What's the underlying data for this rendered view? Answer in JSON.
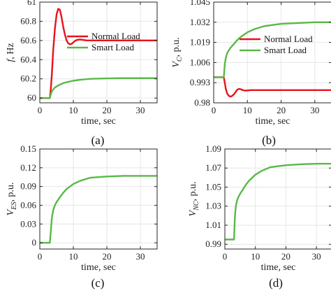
{
  "colors": {
    "normal": "#e8121b",
    "smart": "#58b947",
    "axis": "#262626",
    "grid": "#e6e6e6"
  },
  "chart_data": [
    {
      "id": "a",
      "type": "line",
      "subcaption": "(a)",
      "xlabel": "time, sec",
      "ylabel_main": "f",
      "ylabel_unit": ", Hz",
      "xlim": [
        0,
        35
      ],
      "ylim": [
        59.95,
        61
      ],
      "xticks": [
        0,
        10,
        20,
        30
      ],
      "yticks": [
        60,
        60.2,
        60.4,
        60.6,
        60.8,
        61
      ],
      "ytick_labels": [
        "60",
        "60.2",
        "60.4",
        "60.6",
        "60.8",
        "61"
      ],
      "legend": "right-middle",
      "grid": true,
      "series": [
        {
          "name": "Normal Load",
          "color_key": "normal",
          "x": [
            0,
            3,
            3.3,
            3.6,
            4,
            4.5,
            5,
            5.5,
            6,
            6.5,
            7,
            7.5,
            8,
            8.5,
            9,
            9.5,
            10,
            10.5,
            11,
            12,
            13,
            14,
            15,
            17,
            20,
            25,
            30,
            35
          ],
          "y": [
            60,
            60,
            60.1,
            60.25,
            60.5,
            60.72,
            60.87,
            60.93,
            60.92,
            60.84,
            60.74,
            60.66,
            60.6,
            60.57,
            60.56,
            60.565,
            60.58,
            60.595,
            60.605,
            60.61,
            60.605,
            60.6,
            60.6,
            60.6,
            60.6,
            60.6,
            60.6,
            60.6
          ]
        },
        {
          "name": "Smart Load",
          "color_key": "smart",
          "x": [
            0,
            3,
            3.3,
            3.6,
            4,
            4.5,
            5,
            6,
            7,
            8,
            10,
            12,
            15,
            20,
            25,
            30,
            35
          ],
          "y": [
            60,
            60,
            60.04,
            60.07,
            60.09,
            60.11,
            60.12,
            60.14,
            60.155,
            60.165,
            60.18,
            60.19,
            60.2,
            60.205,
            60.207,
            60.207,
            60.207
          ]
        }
      ]
    },
    {
      "id": "b",
      "type": "line",
      "subcaption": "(b)",
      "xlabel": "time, sec",
      "ylabel_main": "V",
      "ylabel_sub": "C",
      "ylabel_unit": ", p.u.",
      "xlim": [
        0,
        35
      ],
      "ylim": [
        0.98,
        1.045
      ],
      "xticks": [
        0,
        10,
        20,
        30
      ],
      "yticks": [
        0.98,
        0.993,
        1.006,
        1.019,
        1.032,
        1.045
      ],
      "ytick_labels": [
        "0.98",
        "0.993",
        "1.006",
        "1.019",
        "1.032",
        "1.045"
      ],
      "legend": "right-middle",
      "grid": true,
      "series": [
        {
          "name": "Normal Load",
          "color_key": "normal",
          "x": [
            0,
            3,
            3.3,
            3.6,
            4,
            4.5,
            5,
            5.5,
            6,
            6.5,
            7,
            7.5,
            8,
            8.5,
            9,
            9.5,
            10,
            11,
            12,
            13,
            15,
            20,
            25,
            30,
            35
          ],
          "y": [
            0.9965,
            0.9965,
            0.993,
            0.989,
            0.986,
            0.9845,
            0.984,
            0.9845,
            0.9855,
            0.987,
            0.9885,
            0.989,
            0.9888,
            0.9883,
            0.988,
            0.9879,
            0.988,
            0.9882,
            0.9882,
            0.9882,
            0.9882,
            0.9882,
            0.9882,
            0.9882,
            0.9882
          ]
        },
        {
          "name": "Smart Load",
          "color_key": "smart",
          "x": [
            0,
            3,
            3.3,
            3.6,
            4,
            4.5,
            5,
            6,
            7,
            8,
            10,
            12,
            15,
            20,
            25,
            30,
            35
          ],
          "y": [
            0.9965,
            0.9965,
            1.005,
            1.009,
            1.012,
            1.014,
            1.0155,
            1.018,
            1.0205,
            1.0225,
            1.0255,
            1.0275,
            1.0295,
            1.031,
            1.0315,
            1.032,
            1.032
          ]
        }
      ]
    },
    {
      "id": "c",
      "type": "line",
      "subcaption": "(c)",
      "xlabel": "time, sec",
      "ylabel_main": "V",
      "ylabel_sub": "ES",
      "ylabel_unit": ", p.u.",
      "xlim": [
        0,
        35
      ],
      "ylim": [
        -0.01,
        0.15
      ],
      "xticks": [
        0,
        10,
        20,
        30
      ],
      "yticks": [
        0,
        0.03,
        0.06,
        0.09,
        0.12,
        0.15
      ],
      "ytick_labels": [
        "0",
        "0.03",
        "0.06",
        "0.09",
        "0.12",
        "0.15"
      ],
      "grid": true,
      "series": [
        {
          "name": "",
          "color_key": "smart",
          "x": [
            0,
            3,
            3.3,
            3.6,
            4,
            4.5,
            5,
            6,
            7,
            8,
            10,
            12,
            15,
            20,
            25,
            30,
            35
          ],
          "y": [
            0,
            0,
            0.02,
            0.04,
            0.052,
            0.06,
            0.065,
            0.073,
            0.08,
            0.086,
            0.094,
            0.099,
            0.104,
            0.106,
            0.107,
            0.107,
            0.107
          ]
        }
      ]
    },
    {
      "id": "d",
      "type": "line",
      "subcaption": "(d)",
      "xlabel": "time, sec",
      "ylabel_main": "V",
      "ylabel_sub": "NC",
      "ylabel_unit": ", p.u.",
      "xlim": [
        0,
        35
      ],
      "ylim": [
        0.985,
        1.09
      ],
      "xticks": [
        0,
        10,
        20,
        30
      ],
      "yticks": [
        0.99,
        1.01,
        1.03,
        1.05,
        1.07,
        1.09
      ],
      "ytick_labels": [
        "0.99",
        "1.01",
        "1.03",
        "1.05",
        "1.07",
        "1.09"
      ],
      "grid": true,
      "series": [
        {
          "name": "",
          "color_key": "smart",
          "x": [
            0,
            3,
            3.3,
            3.6,
            4,
            4.5,
            5,
            6,
            7,
            8,
            10,
            12,
            15,
            20,
            25,
            30,
            35
          ],
          "y": [
            0.995,
            0.995,
            1.02,
            1.03,
            1.036,
            1.04,
            1.043,
            1.048,
            1.053,
            1.057,
            1.063,
            1.067,
            1.071,
            1.073,
            1.074,
            1.0745,
            1.0745
          ]
        }
      ]
    }
  ]
}
